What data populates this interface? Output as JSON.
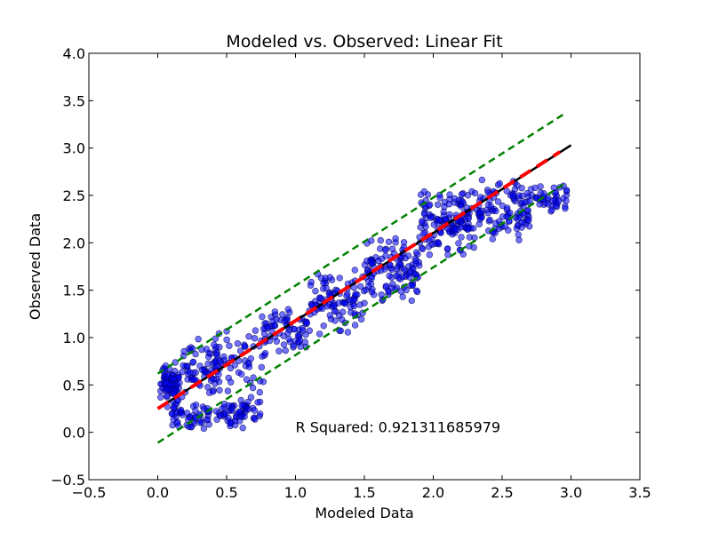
{
  "chart_data": {
    "type": "scatter",
    "title": "Modeled vs. Observed: Linear Fit",
    "xlabel": "Modeled Data",
    "ylabel": "Observed Data",
    "xlim": [
      -0.5,
      3.5
    ],
    "ylim": [
      -0.5,
      4.0
    ],
    "xticks": [
      -0.5,
      0.0,
      0.5,
      1.0,
      1.5,
      2.0,
      2.5,
      3.0,
      3.5
    ],
    "yticks": [
      -0.5,
      0.0,
      0.5,
      1.0,
      1.5,
      2.0,
      2.5,
      3.0,
      3.5,
      4.0
    ],
    "xtick_labels": [
      "−0.5",
      "0.0",
      "0.5",
      "1.0",
      "1.5",
      "2.0",
      "2.5",
      "3.0",
      "3.5"
    ],
    "ytick_labels": [
      "−0.5",
      "0.0",
      "0.5",
      "1.0",
      "1.5",
      "2.0",
      "2.5",
      "3.0",
      "3.5",
      "4.0"
    ],
    "grid": false,
    "annotation": {
      "text": "R Squared: 0.921311685979",
      "x": 1.0,
      "y": 0.0
    },
    "scatter": {
      "color": "#0000ff",
      "edge_color": "#000055",
      "opacity": 0.55,
      "clusters": [
        {
          "x_range": [
            0.02,
            0.15
          ],
          "y_range": [
            0.2,
            0.8
          ],
          "count": 80
        },
        {
          "x_range": [
            0.1,
            0.65
          ],
          "y_range": [
            0.02,
            0.35
          ],
          "count": 90
        },
        {
          "x_range": [
            0.15,
            0.45
          ],
          "y_range": [
            0.3,
            1.0
          ],
          "count": 70
        },
        {
          "x_range": [
            0.4,
            0.8
          ],
          "y_range": [
            0.4,
            1.15
          ],
          "count": 60
        },
        {
          "x_range": [
            0.5,
            0.75
          ],
          "y_range": [
            0.05,
            0.4
          ],
          "count": 25
        },
        {
          "x_range": [
            0.75,
            1.1
          ],
          "y_range": [
            0.8,
            1.35
          ],
          "count": 70
        },
        {
          "x_range": [
            1.1,
            1.5
          ],
          "y_range": [
            1.0,
            1.75
          ],
          "count": 100
        },
        {
          "x_range": [
            1.5,
            1.9
          ],
          "y_range": [
            1.35,
            2.1
          ],
          "count": 120
        },
        {
          "x_range": [
            1.9,
            2.3
          ],
          "y_range": [
            1.85,
            2.6
          ],
          "count": 140
        },
        {
          "x_range": [
            2.3,
            2.7
          ],
          "y_range": [
            1.95,
            2.68
          ],
          "count": 110
        },
        {
          "x_range": [
            2.7,
            2.98
          ],
          "y_range": [
            2.3,
            2.62
          ],
          "count": 45
        }
      ]
    },
    "lines": [
      {
        "name": "",
        "color": "#000000",
        "style": "solid",
        "width": 2.5,
        "x": [
          0.0,
          3.0
        ],
        "y": [
          0.25,
          3.03
        ]
      },
      {
        "name": "",
        "color": "#ff0000",
        "style": "dashed",
        "width": 4,
        "x": [
          0.0,
          2.92
        ],
        "y": [
          0.25,
          2.96
        ]
      },
      {
        "name": "",
        "color": "#008000",
        "style": "dashed",
        "width": 2.5,
        "x": [
          0.0,
          2.95
        ],
        "y": [
          0.62,
          3.36
        ]
      },
      {
        "name": "",
        "color": "#008000",
        "style": "dashed",
        "width": 2.5,
        "x": [
          0.0,
          2.95
        ],
        "y": [
          -0.11,
          2.62
        ]
      }
    ]
  }
}
